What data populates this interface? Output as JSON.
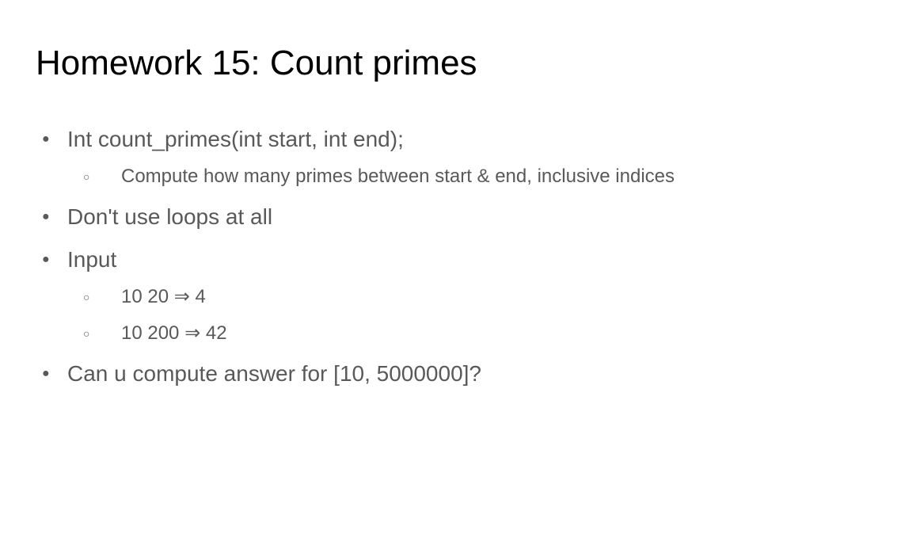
{
  "title": "Homework 15: Count primes",
  "colors": {
    "title": "#000000",
    "body_text": "#595959",
    "background": "#ffffff",
    "bullet_filled": "#595959",
    "bullet_hollow": "#595959"
  },
  "typography": {
    "title_fontsize": 44,
    "level1_fontsize": 28,
    "level2_fontsize": 24,
    "font_family": "Arial"
  },
  "bullets": [
    {
      "text": "Int count_primes(int start, int end);",
      "sub": [
        {
          "text": "Compute how many primes between start & end, inclusive indices"
        }
      ]
    },
    {
      "text": "Don't use loops at all",
      "sub": []
    },
    {
      "text": "Input",
      "sub": [
        {
          "text": "10 20 ⇒ 4"
        },
        {
          "text": "10 200 ⇒ 42"
        }
      ]
    },
    {
      "text": "Can u compute answer for [10, 5000000]?",
      "sub": []
    }
  ]
}
